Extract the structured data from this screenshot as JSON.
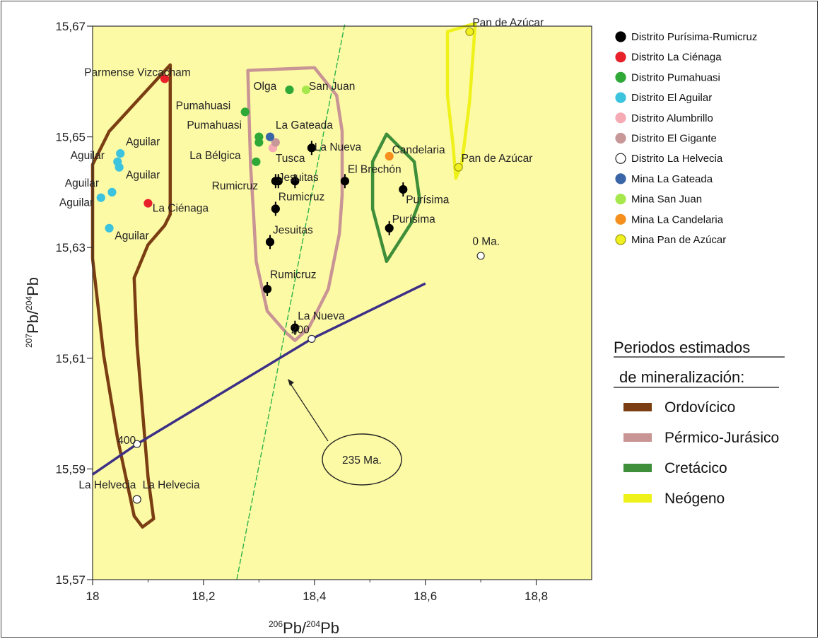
{
  "chart_data": {
    "type": "scatter",
    "xlim": [
      18.0,
      18.9
    ],
    "ylim": [
      15.57,
      15.67
    ],
    "x_ticks": [
      "18",
      "18,2",
      "18,4",
      "18,6",
      "18,8"
    ],
    "y_ticks": [
      "15,57",
      "15,59",
      "15,61",
      "15,63",
      "15,65",
      "15,67"
    ],
    "xlabel_sup1": "206",
    "xlabel_main1": "Pb/",
    "xlabel_sup2": "204",
    "xlabel_main2": "Pb",
    "ylabel_sup1": "207",
    "ylabel_main1": "Pb/",
    "ylabel_sup2": "204",
    "ylabel_main2": "Pb",
    "grid": false,
    "legend": "top-right",
    "series": [
      {
        "name": "Distrito Purísima-Rumicruz",
        "color": "#000000",
        "stroke": "#000000",
        "points": [
          {
            "x": 18.395,
            "y": 15.648
          },
          {
            "x": 18.335,
            "y": 15.642
          },
          {
            "x": 18.33,
            "y": 15.642
          },
          {
            "x": 18.365,
            "y": 15.642
          },
          {
            "x": 18.455,
            "y": 15.642
          },
          {
            "x": 18.33,
            "y": 15.637
          },
          {
            "x": 18.32,
            "y": 15.631
          },
          {
            "x": 18.315,
            "y": 15.6225
          },
          {
            "x": 18.365,
            "y": 15.6155
          },
          {
            "x": 18.56,
            "y": 15.6405
          },
          {
            "x": 18.535,
            "y": 15.6335
          }
        ]
      },
      {
        "name": "Distrito La Ciénaga",
        "color": "#e8202a",
        "stroke": "#e8202a",
        "points": [
          {
            "x": 18.13,
            "y": 15.6605
          },
          {
            "x": 18.1,
            "y": 15.638
          }
        ]
      },
      {
        "name": "Distrito Pumahuasi",
        "color": "#2ea836",
        "stroke": "#2ea836",
        "points": [
          {
            "x": 18.355,
            "y": 15.6585
          },
          {
            "x": 18.275,
            "y": 15.6545
          },
          {
            "x": 18.3,
            "y": 15.65
          },
          {
            "x": 18.3,
            "y": 15.649
          },
          {
            "x": 18.295,
            "y": 15.6455
          }
        ]
      },
      {
        "name": "Distrito El Aguilar",
        "color": "#3cc3dd",
        "stroke": "#3cc3dd",
        "points": [
          {
            "x": 18.05,
            "y": 15.647
          },
          {
            "x": 18.045,
            "y": 15.6455
          },
          {
            "x": 18.048,
            "y": 15.6445
          },
          {
            "x": 18.035,
            "y": 15.64
          },
          {
            "x": 18.015,
            "y": 15.639
          },
          {
            "x": 18.03,
            "y": 15.6335
          }
        ]
      },
      {
        "name": "Distrito Alumbrillo",
        "color": "#f5aab4",
        "stroke": "#f5aab4",
        "points": [
          {
            "x": 18.325,
            "y": 15.648
          }
        ]
      },
      {
        "name": "Distrito El Gigante",
        "color": "#c89898",
        "stroke": "#c89898",
        "points": [
          {
            "x": 18.33,
            "y": 15.649
          }
        ]
      },
      {
        "name": "Distrito La Helvecia",
        "color": "#ffffff",
        "stroke": "#222222",
        "points": [
          {
            "x": 18.08,
            "y": 15.5845
          }
        ]
      },
      {
        "name": "Mina La Gateada",
        "color": "#3a66a8",
        "stroke": "#3a66a8",
        "points": [
          {
            "x": 18.32,
            "y": 15.65
          }
        ]
      },
      {
        "name": "Mina San Juan",
        "color": "#a6e84c",
        "stroke": "#a6e84c",
        "points": [
          {
            "x": 18.385,
            "y": 15.6585
          }
        ]
      },
      {
        "name": "Mina La Candelaria",
        "color": "#f5901e",
        "stroke": "#f5901e",
        "points": [
          {
            "x": 18.535,
            "y": 15.6465
          }
        ]
      },
      {
        "name": "Mina Pan de Azúcar",
        "color": "#f0f020",
        "stroke": "#9a9a10",
        "points": [
          {
            "x": 18.68,
            "y": 15.669
          },
          {
            "x": 18.66,
            "y": 15.6445
          }
        ]
      }
    ],
    "point_labels": [
      {
        "text": "Pan de Azúcar",
        "x": 18.685,
        "y": 15.67
      },
      {
        "text": "Parmense Vizcacham",
        "x": 17.985,
        "y": 15.661
      },
      {
        "text": "Olga",
        "x": 18.29,
        "y": 15.6585
      },
      {
        "text": "San Juan",
        "x": 18.39,
        "y": 15.6585
      },
      {
        "text": "Pumahuasi",
        "x": 18.15,
        "y": 15.655
      },
      {
        "text": "Pumahuasi",
        "x": 18.17,
        "y": 15.6515
      },
      {
        "text": "La Gateada",
        "x": 18.33,
        "y": 15.6515
      },
      {
        "text": "Aguilar",
        "x": 18.06,
        "y": 15.6485
      },
      {
        "text": "Aguilar",
        "x": 17.96,
        "y": 15.646
      },
      {
        "text": "La Bélgica",
        "x": 18.175,
        "y": 15.646
      },
      {
        "text": "La Nueva",
        "x": 18.4,
        "y": 15.6475
      },
      {
        "text": "Candelaria",
        "x": 18.54,
        "y": 15.647
      },
      {
        "text": "Tusca",
        "x": 18.33,
        "y": 15.6455
      },
      {
        "text": "Pan de Azúcar",
        "x": 18.665,
        "y": 15.6455
      },
      {
        "text": "Aguilar",
        "x": 18.06,
        "y": 15.6425
      },
      {
        "text": "El Brechón",
        "x": 18.46,
        "y": 15.6435
      },
      {
        "text": "Jesuitas",
        "x": 18.335,
        "y": 15.642
      },
      {
        "text": "Aguilar",
        "x": 17.95,
        "y": 15.641
      },
      {
        "text": "Rumicruz",
        "x": 18.215,
        "y": 15.6405
      },
      {
        "text": "Rumicruz",
        "x": 18.335,
        "y": 15.6385
      },
      {
        "text": "Purísima",
        "x": 18.565,
        "y": 15.638
      },
      {
        "text": "Aguilar",
        "x": 17.94,
        "y": 15.6375
      },
      {
        "text": "La Ciénaga",
        "x": 18.108,
        "y": 15.6365
      },
      {
        "text": "Purísima",
        "x": 18.54,
        "y": 15.6345
      },
      {
        "text": "Jesuitas",
        "x": 18.325,
        "y": 15.6325
      },
      {
        "text": "Aguilar",
        "x": 18.04,
        "y": 15.6315
      },
      {
        "text": "0 Ma.",
        "x": 18.685,
        "y": 15.6305
      },
      {
        "text": "Rumicruz",
        "x": 18.32,
        "y": 15.6245
      },
      {
        "text": "La Nueva",
        "x": 18.37,
        "y": 15.617
      },
      {
        "text": "200",
        "x": 18.358,
        "y": 15.6145
      },
      {
        "text": "400",
        "x": 18.045,
        "y": 15.5945
      },
      {
        "text": "La Helvecia",
        "x": 17.975,
        "y": 15.5865
      },
      {
        "text": "La Helvecia",
        "x": 18.09,
        "y": 15.5865
      }
    ],
    "isochron": {
      "label": "235 Ma.",
      "from": {
        "x": 18.26,
        "y": 15.57
      },
      "to": {
        "x": 18.455,
        "y": 15.6705
      }
    },
    "growth_curve": {
      "points": [
        {
          "x": 18.0,
          "y": 15.589
        },
        {
          "x": 18.08,
          "y": 15.5945
        },
        {
          "x": 18.395,
          "y": 15.6135
        },
        {
          "x": 18.6,
          "y": 15.6235
        }
      ],
      "ticks": [
        {
          "x": 18.08,
          "y": 15.5945
        },
        {
          "x": 18.395,
          "y": 15.6135
        },
        {
          "x": 18.7,
          "y": 15.6285
        }
      ]
    },
    "mineralization_periods": [
      {
        "name": "Ordovícico",
        "color": "#7a3e12"
      },
      {
        "name": "Pérmico-Jurásico",
        "color": "#c89494"
      },
      {
        "name": "Cretácico",
        "color": "#3f8e3a"
      },
      {
        "name": "Neógeno",
        "color": "#eef21a"
      }
    ],
    "fields": [
      {
        "period": "Ordovícico",
        "points": [
          [
            18.0,
            15.645
          ],
          [
            18.03,
            15.651
          ],
          [
            18.14,
            15.663
          ],
          [
            18.14,
            15.636
          ],
          [
            18.13,
            15.634
          ],
          [
            18.1,
            15.6305
          ],
          [
            18.075,
            15.6245
          ],
          [
            18.08,
            15.6125
          ],
          [
            18.1,
            15.5885
          ],
          [
            18.11,
            15.581
          ],
          [
            18.09,
            15.5795
          ],
          [
            18.075,
            15.5815
          ],
          [
            18.045,
            15.5955
          ],
          [
            18.02,
            15.6105
          ],
          [
            18.0,
            15.628
          ]
        ]
      },
      {
        "period": "Pérmico-Jurásico",
        "points": [
          [
            18.28,
            15.662
          ],
          [
            18.4,
            15.6625
          ],
          [
            18.44,
            15.6575
          ],
          [
            18.45,
            15.651
          ],
          [
            18.45,
            15.6395
          ],
          [
            18.445,
            15.6325
          ],
          [
            18.425,
            15.6225
          ],
          [
            18.39,
            15.6155
          ],
          [
            18.365,
            15.6132
          ],
          [
            18.35,
            15.6145
          ],
          [
            18.315,
            15.6185
          ],
          [
            18.295,
            15.6275
          ],
          [
            18.29,
            15.6365
          ],
          [
            18.285,
            15.6445
          ],
          [
            18.282,
            15.6545
          ]
        ]
      },
      {
        "period": "Cretácico",
        "points": [
          [
            18.53,
            15.6505
          ],
          [
            18.58,
            15.6455
          ],
          [
            18.59,
            15.6385
          ],
          [
            18.575,
            15.6345
          ],
          [
            18.53,
            15.6275
          ],
          [
            18.505,
            15.637
          ],
          [
            18.505,
            15.6455
          ]
        ]
      },
      {
        "period": "Neógeno",
        "points": [
          [
            18.64,
            15.669
          ],
          [
            18.69,
            15.6705
          ],
          [
            18.68,
            15.6565
          ],
          [
            18.67,
            15.6485
          ],
          [
            18.665,
            15.645
          ],
          [
            18.655,
            15.6425
          ],
          [
            18.65,
            15.6485
          ],
          [
            18.64,
            15.6575
          ]
        ]
      }
    ]
  },
  "legend_title_1": "Periodos estimados",
  "legend_title_2": "de mineralización:"
}
